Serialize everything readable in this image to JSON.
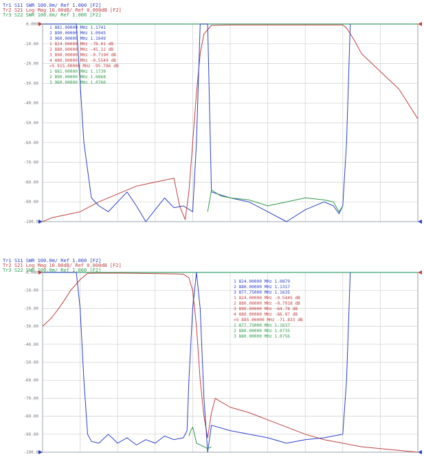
{
  "colors": {
    "s21": "#c04040",
    "s11": "#2a3fc6",
    "s22": "#2e9a4a",
    "grid": "#cfcfcf",
    "frame": "#9aa0b0"
  },
  "chart_data": [
    {
      "type": "line",
      "headers": [
        {
          "text": "Tr1 S11 SWR 100.0m/ Ref 1.000 [F2]",
          "color": "#2a3fc6"
        },
        {
          "text": "Tr2 S21 Log Mag 10.00dB/ Ref 0.000dB [F2]",
          "color": "#c04040"
        },
        {
          "text": "Tr3 S22 SWR 100.0m/ Ref 1.000 [F2]",
          "color": "#2e9a4a"
        }
      ],
      "ytick_labels": [
        "0.000",
        "-10.00",
        "-20.00",
        "-30.00",
        "-40.00",
        "-50.00",
        "-60.00",
        "-70.00",
        "-80.00",
        "-90.00",
        "-100.0"
      ],
      "ylim": [
        -100,
        0
      ],
      "xlim": [
        800,
        1000
      ],
      "markers": [
        {
          "text": "1  881.00000 MHz  1.1741",
          "color": "#2a3fc6"
        },
        {
          "text": "2  890.00000 MHz  1.0945",
          "color": "#2a3fc6"
        },
        {
          "text": "3  960.00000 MHz  1.1049",
          "color": "#2a3fc6"
        },
        {
          "text": "1  824.00000 MHz  -78.01 dB",
          "color": "#c04040"
        },
        {
          "text": "2  880.00000 MHz  -45.12 dB",
          "color": "#c04040"
        },
        {
          "text": "3  890.00000 MHz  -0.7190 dB",
          "color": "#c04040"
        },
        {
          "text": "4  880.00000 MHz  -0.5549 dB",
          "color": "#c04040"
        },
        {
          "text": ">5  915.00000 MHz  -95.786 dB",
          "color": "#c04040"
        },
        {
          "text": "1  881.00000 MHz  1.1739",
          "color": "#2e9a4a"
        },
        {
          "text": "2  890.00000 MHz  1.0868",
          "color": "#2e9a4a"
        },
        {
          "text": "3  960.00000 MHz  1.0766",
          "color": "#2e9a4a"
        }
      ],
      "series": [
        {
          "name": "S21",
          "color": "#c04040",
          "x": [
            800,
            805,
            810,
            815,
            820,
            824,
            830,
            840,
            850,
            860,
            870,
            873,
            876,
            878,
            880,
            882,
            884,
            886,
            890,
            900,
            940,
            960,
            962,
            966,
            970,
            980,
            990,
            1000
          ],
          "y": [
            -100,
            -98,
            -97,
            -96,
            -95,
            -93,
            -90,
            -86,
            -82,
            -80,
            -78,
            -92,
            -99,
            -85,
            -60,
            -35,
            -15,
            -5,
            -0.7,
            -0.5,
            -0.5,
            -0.5,
            -2,
            -8,
            -15,
            -24,
            -33,
            -48
          ]
        },
        {
          "name": "S11",
          "color": "#2a3fc6",
          "x": [
            800,
            818,
            822,
            826,
            830,
            835,
            840,
            845,
            850,
            855,
            860,
            865,
            870,
            875,
            880,
            882,
            884,
            886,
            888,
            890,
            900,
            910,
            920,
            930,
            940,
            950,
            955,
            958,
            960,
            962,
            964
          ],
          "y": [
            0,
            0,
            -60,
            -88,
            -92,
            -95,
            -90,
            -85,
            -92,
            -100,
            -94,
            -88,
            -93,
            -92,
            -95,
            -60,
            0,
            0,
            0,
            -85,
            -88,
            -90,
            -95,
            -100,
            -94,
            -90,
            -92,
            -96,
            -92,
            -60,
            0
          ]
        },
        {
          "name": "S22",
          "color": "#2e9a4a",
          "x": [
            888,
            890,
            895,
            900,
            910,
            920,
            930,
            940,
            950,
            955,
            958,
            960
          ],
          "y": [
            -95,
            -84,
            -87,
            -88,
            -89,
            -92,
            -90,
            -88,
            -89,
            -90,
            -95,
            -92
          ]
        }
      ]
    },
    {
      "type": "line",
      "headers": [
        {
          "text": "Tr1 S11 SWR 100.0m/ Ref 1.000 [F2]",
          "color": "#2a3fc6"
        },
        {
          "text": "Tr2 S21 Log Mag 10.00dB/ Ref 0.000dB [F2]",
          "color": "#c04040"
        },
        {
          "text": "Tr3 S22 SWR 100.0m/ Ref 1.000 [F2]",
          "color": "#2e9a4a"
        }
      ],
      "ytick_labels": [
        "0.000",
        "-10.00",
        "-20.00",
        "-30.00",
        "-40.00",
        "-50.00",
        "-60.00",
        "-70.00",
        "-80.00",
        "-90.00",
        "-100.0"
      ],
      "ylim": [
        -100,
        0
      ],
      "xlim": [
        800,
        1000
      ],
      "markers": [
        {
          "text": "1  824.00000 MHz  1.0879",
          "color": "#2a3fc6"
        },
        {
          "text": "2  880.00000 MHz  1.1317",
          "color": "#2a3fc6"
        },
        {
          "text": "3  877.75000 MHz  1.1635",
          "color": "#2a3fc6"
        },
        {
          "text": "1  824.00000 MHz  -0.5445 dB",
          "color": "#c04040"
        },
        {
          "text": "2  880.00000 MHz  -0.7918 dB",
          "color": "#c04040"
        },
        {
          "text": "3  890.00000 MHz  -64.78 dB",
          "color": "#c04040"
        },
        {
          "text": "4  880.00000 MHz  -66.97 dB",
          "color": "#c04040"
        },
        {
          "text": ">5  885.00000 MHz  -71.833 dB",
          "color": "#c04040"
        },
        {
          "text": "1  877.75000 MHz  1.1637",
          "color": "#2e9a4a"
        },
        {
          "text": "2  880.00000 MHz  1.0735",
          "color": "#2e9a4a"
        },
        {
          "text": "3  880.00000 MHz  1.0756",
          "color": "#2e9a4a"
        }
      ],
      "series": [
        {
          "name": "S21",
          "color": "#c04040",
          "x": [
            800,
            805,
            810,
            815,
            820,
            824,
            830,
            840,
            850,
            860,
            870,
            875,
            878,
            880,
            882,
            884,
            886,
            888,
            890,
            892,
            895,
            900,
            910,
            920,
            930,
            940,
            950,
            960,
            970,
            980,
            990,
            1000
          ],
          "y": [
            -30,
            -25,
            -18,
            -10,
            -4,
            -0.5,
            -0.4,
            -0.4,
            -0.5,
            -0.6,
            -0.8,
            -1,
            -3,
            -10,
            -30,
            -60,
            -80,
            -92,
            -78,
            -70,
            -72,
            -75,
            -78,
            -82,
            -86,
            -90,
            -93,
            -95,
            -97,
            -98,
            -99,
            -100
          ]
        },
        {
          "name": "S11",
          "color": "#2a3fc6",
          "x": [
            800,
            818,
            820,
            822,
            824,
            826,
            830,
            835,
            840,
            845,
            850,
            855,
            860,
            865,
            870,
            875,
            877,
            878,
            880,
            882,
            884,
            886,
            888,
            890,
            900,
            910,
            920,
            930,
            940,
            950,
            960,
            962,
            964
          ],
          "y": [
            0,
            0,
            -20,
            -60,
            -90,
            -94,
            -95,
            -90,
            -95,
            -92,
            -96,
            -93,
            -95,
            -91,
            -93,
            -92,
            -88,
            -60,
            -20,
            0,
            -20,
            -70,
            -100,
            -85,
            -88,
            -90,
            -92,
            -95,
            -93,
            -92,
            -90,
            -60,
            0
          ]
        },
        {
          "name": "S22",
          "color": "#2e9a4a",
          "x": [
            878,
            879,
            880,
            881,
            882,
            884,
            886,
            888,
            890
          ],
          "y": [
            -91,
            -88,
            -86,
            -90,
            -95,
            -96,
            -97,
            -98,
            -97
          ]
        }
      ]
    }
  ]
}
